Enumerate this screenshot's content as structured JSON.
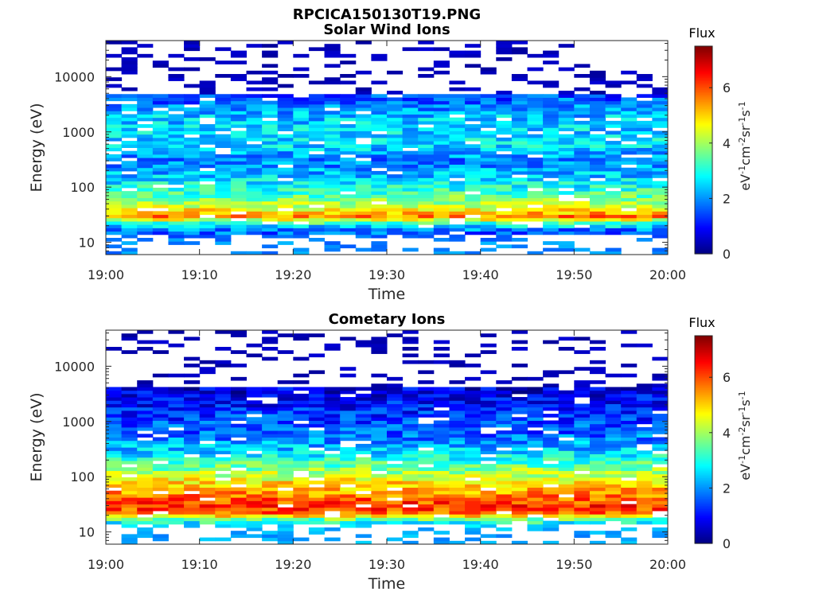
{
  "figure_title": "RPCICA150130T19.PNG",
  "chart_data": [
    {
      "type": "heatmap",
      "title": "Solar Wind Ions",
      "xlabel": "Time",
      "ylabel": "Energy (eV)",
      "x_ticks": [
        "19:00",
        "19:10",
        "19:20",
        "19:30",
        "19:40",
        "19:50",
        "20:00"
      ],
      "xlim": [
        "19:00",
        "20:00"
      ],
      "y_scale": "log",
      "y_ticks": [
        "10",
        "100",
        "1000",
        "10000"
      ],
      "ylim": [
        6,
        45000
      ],
      "time_columns": 36,
      "colorbar": {
        "title": "Flux",
        "label": "eV-1cm-2sr-1s-1",
        "ticks": [
          "0",
          "2",
          "4",
          "6"
        ],
        "range": [
          0,
          7.5
        ],
        "colormap": "jet"
      },
      "profile": [
        {
          "energy": 10,
          "flux": 2.0
        },
        {
          "energy": 16,
          "flux": 1.5
        },
        {
          "energy": 22,
          "flux": 3.0
        },
        {
          "energy": 30,
          "flux": 5.6
        },
        {
          "energy": 45,
          "flux": 4.2
        },
        {
          "energy": 80,
          "flux": 3.2
        },
        {
          "energy": 150,
          "flux": 2.4
        },
        {
          "energy": 300,
          "flux": 1.8
        },
        {
          "energy": 600,
          "flux": 2.6
        },
        {
          "energy": 1000,
          "flux": 2.5
        },
        {
          "energy": 2000,
          "flux": 2.3
        },
        {
          "energy": 4500,
          "flux": 1.4
        },
        {
          "energy": 10000,
          "flux": 0.5
        },
        {
          "energy": 30000,
          "flux": 0.3
        }
      ],
      "gap_above_energy": 5000,
      "gap_band_max_energy": 22,
      "sparse_low_energy": 14
    },
    {
      "type": "heatmap",
      "title": "Cometary Ions",
      "xlabel": "Time",
      "ylabel": "Energy (eV)",
      "x_ticks": [
        "19:00",
        "19:10",
        "19:20",
        "19:30",
        "19:40",
        "19:50",
        "20:00"
      ],
      "xlim": [
        "19:00",
        "20:00"
      ],
      "y_scale": "log",
      "y_ticks": [
        "10",
        "100",
        "1000",
        "10000"
      ],
      "ylim": [
        6,
        45000
      ],
      "time_columns": 36,
      "colorbar": {
        "title": "Flux",
        "label": "eV-1cm-2sr-1s-1",
        "ticks": [
          "0",
          "2",
          "4",
          "6"
        ],
        "range": [
          0,
          7.5
        ],
        "colormap": "jet"
      },
      "profile": [
        {
          "energy": 10,
          "flux": 2.2
        },
        {
          "energy": 16,
          "flux": 3.0
        },
        {
          "energy": 22,
          "flux": 5.8
        },
        {
          "energy": 30,
          "flux": 6.2
        },
        {
          "energy": 45,
          "flux": 5.6
        },
        {
          "energy": 80,
          "flux": 4.8
        },
        {
          "energy": 150,
          "flux": 3.6
        },
        {
          "energy": 300,
          "flux": 2.4
        },
        {
          "energy": 600,
          "flux": 1.6
        },
        {
          "energy": 1000,
          "flux": 1.4
        },
        {
          "energy": 2000,
          "flux": 1.0
        },
        {
          "energy": 4000,
          "flux": 0.6
        },
        {
          "energy": 10000,
          "flux": 0.3
        }
      ],
      "gap_above_energy": 4500,
      "gap_band_max_energy": 18,
      "sparse_low_energy": 14
    }
  ]
}
